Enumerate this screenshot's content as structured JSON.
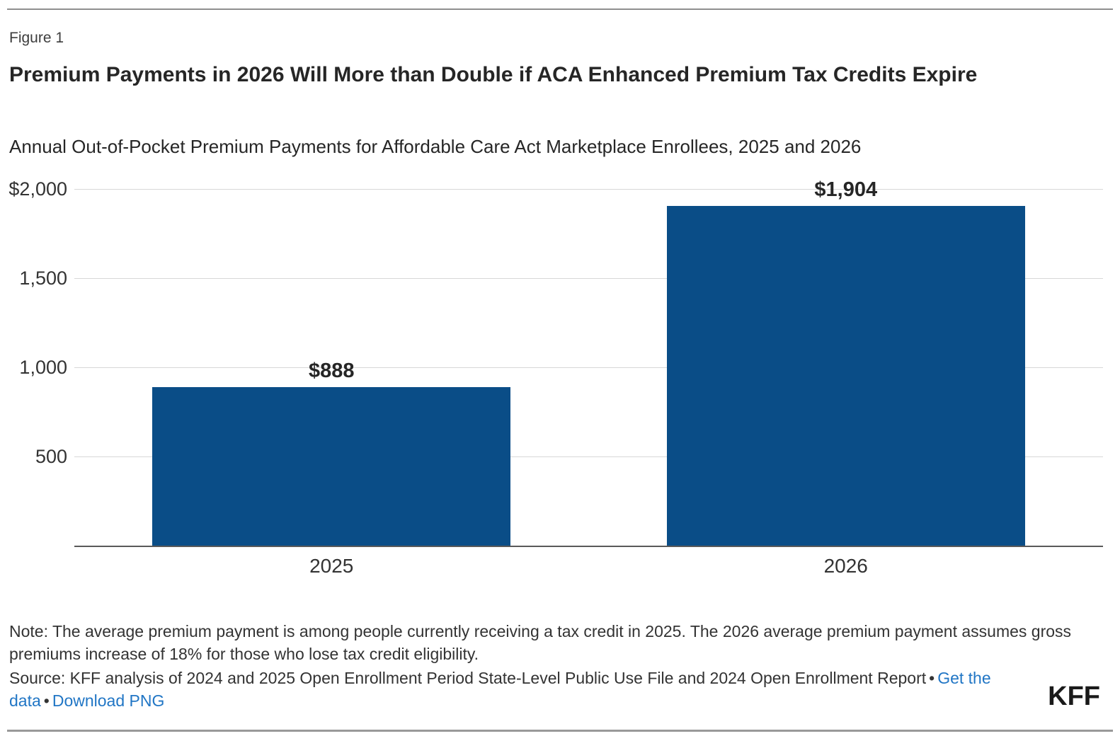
{
  "page": {
    "figure_label": "Figure 1",
    "title": "Premium Payments in 2026 Will More than Double if ACA Enhanced Premium Tax Credits Expire",
    "subtitle": "Annual Out-of-Pocket Premium Payments for Affordable Care Act Marketplace Enrollees, 2025 and 2026"
  },
  "chart_data": {
    "type": "bar",
    "categories": [
      "2025",
      "2026"
    ],
    "values": [
      888,
      1904
    ],
    "value_labels": [
      "$888",
      "$1,904"
    ],
    "title": "Annual Out-of-Pocket Premium Payments for Affordable Care Act Marketplace Enrollees, 2025 and 2026",
    "xlabel": "",
    "ylabel": "",
    "ylim": [
      0,
      2000
    ],
    "yticks": [
      {
        "value": 500,
        "label": "500"
      },
      {
        "value": 1000,
        "label": "1,000"
      },
      {
        "value": 1500,
        "label": "1,500"
      },
      {
        "value": 2000,
        "label": "$2,000"
      }
    ],
    "grid": true,
    "legend": "none",
    "bar_color": "#0A4D87"
  },
  "footer": {
    "note": "Note: The average premium payment is among people currently receiving a tax credit in 2025. The 2026 average premium payment assumes gross premiums increase of 18% for those who lose tax credit eligibility.",
    "source_prefix": "Source: KFF analysis of 2024 and 2025 Open Enrollment Period State-Level Public Use File and 2024 Open Enrollment Report",
    "separator": "•",
    "links": {
      "get_the_data": "Get the data",
      "download_png": "Download PNG"
    },
    "logo": "KFF"
  },
  "colors": {
    "bar": "#0A4D87",
    "link": "#2176C5",
    "grid": "#D7D7D7",
    "axis": "#595959",
    "rule": "#8F8F8F",
    "text": "#333333"
  }
}
